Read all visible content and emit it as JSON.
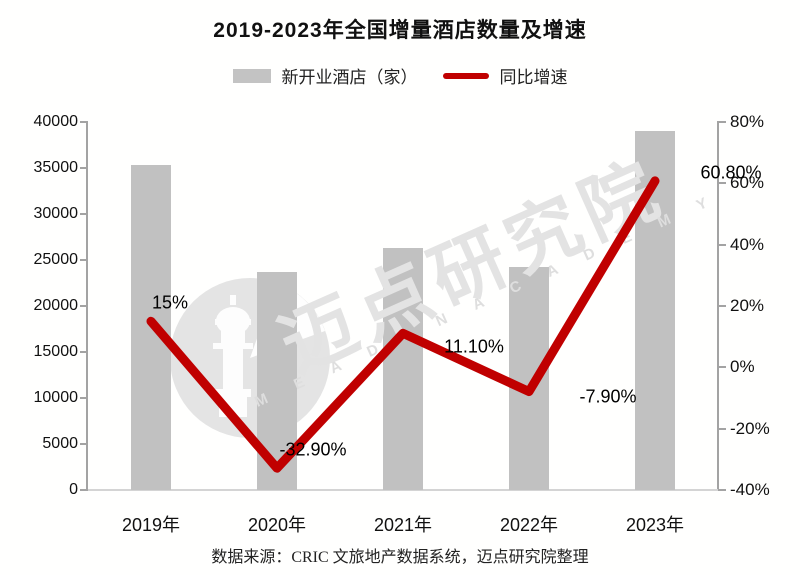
{
  "title": "2019-2023年全国增量酒店数量及增速",
  "legend": [
    {
      "label": "新开业酒店（家）",
      "type": "bar",
      "color": "#c1c1c1"
    },
    {
      "label": "同比增速",
      "type": "line",
      "color": "#c00000"
    }
  ],
  "chart_data": {
    "type": "bar+line",
    "title": "2019-2023年全国增量酒店数量及增速",
    "categories": [
      "2019年",
      "2020年",
      "2021年",
      "2022年",
      "2023年"
    ],
    "series": [
      {
        "name": "新开业酒店（家）",
        "type": "bar",
        "axis": "left",
        "values": [
          35300,
          23700,
          26300,
          24200,
          39000
        ]
      },
      {
        "name": "同比增速",
        "type": "line",
        "axis": "right",
        "values_pct": [
          15,
          -32.9,
          11.1,
          -7.9,
          60.8
        ],
        "labels": [
          "15%",
          "-32.90%",
          "11.10%",
          "-7.90%",
          "60.80%"
        ]
      }
    ],
    "left_axis": {
      "min": 0,
      "max": 40000,
      "step": 5000,
      "ticks": [
        "0",
        "5000",
        "10000",
        "15000",
        "20000",
        "25000",
        "30000",
        "35000",
        "40000"
      ]
    },
    "right_axis": {
      "min": -40,
      "max": 80,
      "step": 20,
      "ticks": [
        "-40%",
        "-20%",
        "0%",
        "20%",
        "40%",
        "60%",
        "80%"
      ]
    },
    "grid": false,
    "legend_position": "top"
  },
  "watermark": {
    "text": "迈点研究院",
    "subtext": "M E A D I N   A C A D E M Y"
  },
  "source": "数据来源：CRIC 文旅地产数据系统，迈点研究院整理",
  "colors": {
    "bar": "#c1c1c1",
    "line": "#c00000",
    "axis": "#a3a3a3",
    "baseline": "#d4d4d4",
    "watermark": "#e3e3e3"
  }
}
